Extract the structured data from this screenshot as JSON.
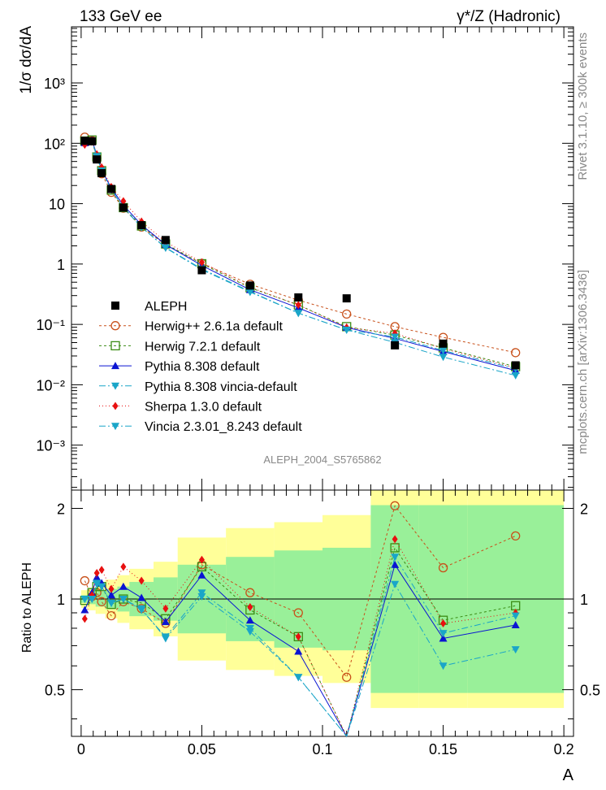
{
  "chart_data": {
    "type": "line",
    "title_left": "133 GeV ee",
    "title_right": "γ*/Z (Hadronic)",
    "watermark": "ALEPH_2004_S5765862",
    "side_label_top": "Rivet 3.1.10, ≥ 300k events",
    "side_label_bottom": "mcplots.cern.ch [arXiv:1306.3436]",
    "xlabel": "A",
    "ylabel": "1/σ  dσ/dA",
    "ratio_ylabel": "Ratio to ALEPH",
    "xlim": [
      -0.004,
      0.204
    ],
    "ylim": [
      0.00018,
      8500
    ],
    "ratio_ylim": [
      0.35,
      2.3
    ],
    "x_ticks": [
      0,
      0.05,
      0.1,
      0.15,
      0.2
    ],
    "x_tick_labels": [
      "0",
      "0.05",
      "0.1",
      "0.15",
      "0.2"
    ],
    "y_tick_labels": [
      "10⁻³",
      "10⁻²",
      "10⁻¹",
      "1",
      "10",
      "10²",
      "10³"
    ],
    "ratio_tick_labels": [
      "0.5",
      "1",
      "2"
    ],
    "x": [
      0.0015,
      0.0045,
      0.0065,
      0.0085,
      0.0125,
      0.0175,
      0.025,
      0.035,
      0.05,
      0.07,
      0.09,
      0.11,
      0.13,
      0.15,
      0.18
    ],
    "bin_edges": [
      0,
      0.003,
      0.006,
      0.007,
      0.01,
      0.015,
      0.02,
      0.03,
      0.04,
      0.06,
      0.08,
      0.1,
      0.12,
      0.14,
      0.16,
      0.2
    ],
    "data": {
      "name": "ALEPH",
      "values": [
        110,
        108,
        54,
        32,
        17.5,
        8.6,
        4.4,
        2.5,
        0.79,
        0.44,
        0.28,
        0.27,
        0.045,
        0.048,
        0.021
      ]
    },
    "band_inner": [
      1.03,
      1.04,
      1.06,
      1.06,
      1.08,
      1.1,
      1.14,
      1.18,
      1.3,
      1.38,
      1.45,
      1.48,
      2.05,
      2.05,
      2.05
    ],
    "band_outer": [
      1.07,
      1.09,
      1.12,
      1.12,
      1.16,
      1.2,
      1.26,
      1.33,
      1.6,
      1.72,
      1.8,
      1.9,
      2.3,
      2.3,
      2.3
    ],
    "series": [
      {
        "name": "Herwig++ 2.6.1a default",
        "color": "#c8501a",
        "marker": "open-circle",
        "dash": "3,3",
        "ratio": [
          1.15,
          1.02,
          1.05,
          0.98,
          0.88,
          0.98,
          0.93,
          0.83,
          1.3,
          1.05,
          0.9,
          0.55,
          2.04,
          1.27,
          1.62
        ]
      },
      {
        "name": "Herwig 7.2.1 default",
        "color": "#3b8c14",
        "marker": "open-square",
        "dash": "3,3",
        "ratio": [
          0.99,
          1.05,
          1.1,
          1.1,
          0.96,
          1.0,
          0.97,
          0.86,
          1.28,
          0.92,
          0.75,
          0.34,
          1.48,
          0.85,
          0.95
        ]
      },
      {
        "name": "Pythia 8.308 default",
        "color": "#0a14d2",
        "marker": "triangle-up",
        "dash": "",
        "ratio": [
          0.92,
          1.05,
          1.18,
          1.13,
          1.03,
          1.1,
          1.01,
          0.84,
          1.2,
          0.85,
          0.67,
          0.33,
          1.3,
          0.74,
          0.82
        ]
      },
      {
        "name": "Pythia 8.308 vincia-default",
        "color": "#1aa5c8",
        "marker": "triangle-down",
        "dash": "8,3,2,3",
        "ratio": [
          1.0,
          1.0,
          1.12,
          1.1,
          0.97,
          1.0,
          0.93,
          0.74,
          1.02,
          0.78,
          0.55,
          0.3,
          1.12,
          0.6,
          0.68
        ]
      },
      {
        "name": "Sherpa 1.3.0 default",
        "color": "#e81010",
        "marker": "diamond",
        "dash": "1,3",
        "ratio": [
          0.86,
          1.03,
          1.22,
          1.25,
          1.08,
          1.28,
          1.15,
          0.93,
          1.35,
          0.94,
          0.75,
          0.33,
          1.58,
          0.83,
          0.9
        ]
      },
      {
        "name": "Vincia 2.3.01_8.243 default",
        "color": "#1aa5c8",
        "marker": "triangle-down",
        "dash": "8,3,2,3",
        "ratio": [
          1.0,
          1.0,
          1.13,
          1.1,
          0.97,
          1.0,
          0.92,
          0.75,
          1.05,
          0.8,
          0.55,
          0.3,
          1.38,
          0.77,
          0.88
        ]
      }
    ]
  }
}
